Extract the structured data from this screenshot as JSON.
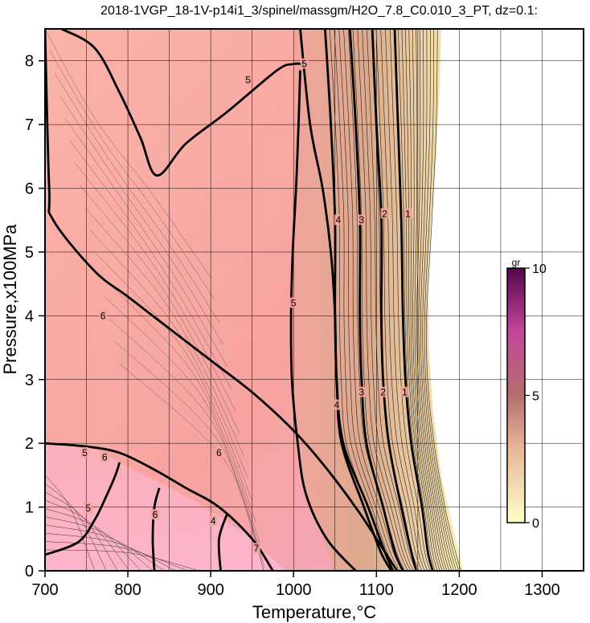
{
  "chart_data": {
    "type": "heatmap",
    "title": "2018-1VGP_18-1V-p14i1_3/spinel/massgm/H2O_7.8_C0.010_3_PT, dz=0.1:",
    "xlabel": "Temperature,°C",
    "ylabel": "Pressure,x100MPa",
    "xlim": [
      700,
      1350
    ],
    "ylim": [
      0,
      8.5
    ],
    "xticks": [
      700,
      800,
      900,
      1000,
      1100,
      1200,
      1300
    ],
    "yticks": [
      0,
      1,
      2,
      3,
      4,
      5,
      6,
      7,
      8
    ],
    "grid": true,
    "colorbar": {
      "unit": "gr",
      "min": 0,
      "max": 10,
      "ticks": [
        0,
        5,
        10
      ],
      "colors": [
        "#ffffc8",
        "#e6b496",
        "#b46e6e",
        "#c3479b",
        "#55064b"
      ]
    },
    "contours": [
      {
        "level": 6,
        "points": [
          [
            700,
            8.5
          ],
          [
            705,
            6.0
          ],
          [
            710,
            5.5
          ],
          [
            760,
            4.7
          ],
          [
            800,
            4.3
          ],
          [
            850,
            3.8
          ],
          [
            900,
            3.3
          ],
          [
            950,
            2.8
          ],
          [
            1000,
            2.2
          ],
          [
            1040,
            1.6
          ],
          [
            1080,
            0.9
          ],
          [
            1110,
            0.3
          ],
          [
            1125,
            0
          ]
        ]
      },
      {
        "level": 6,
        "points": [
          [
            700,
            2.0
          ],
          [
            750,
            1.95
          ],
          [
            790,
            1.85
          ],
          [
            830,
            1.6
          ],
          [
            870,
            1.3
          ],
          [
            910,
            1.0
          ],
          [
            950,
            0.5
          ],
          [
            975,
            0
          ]
        ]
      },
      {
        "level": 6,
        "points": [
          [
            720,
            8.5
          ],
          [
            760,
            8.2
          ],
          [
            790,
            7.5
          ],
          [
            815,
            6.8
          ],
          [
            835,
            6.2
          ],
          [
            870,
            6.7
          ],
          [
            920,
            7.2
          ],
          [
            980,
            7.85
          ],
          [
            1000,
            7.95
          ],
          [
            1012,
            7.95
          ]
        ]
      },
      {
        "level": 6,
        "points": [
          [
            1008,
            7.85
          ],
          [
            1006,
            7.0
          ],
          [
            1003,
            6.0
          ],
          [
            999,
            5.0
          ],
          [
            997,
            4.0
          ],
          [
            998,
            3.0
          ],
          [
            1005,
            2.0
          ],
          [
            1015,
            1.2
          ],
          [
            1040,
            0.5
          ],
          [
            1075,
            0
          ]
        ]
      },
      {
        "level": 5,
        "points": [
          [
            700,
            0.25
          ],
          [
            740,
            0.45
          ],
          [
            760,
            0.8
          ],
          [
            775,
            1.2
          ],
          [
            785,
            1.5
          ],
          [
            790,
            1.7
          ]
        ]
      },
      {
        "level": 5,
        "points": [
          [
            832,
            0
          ],
          [
            830,
            0.5
          ],
          [
            832,
            1.0
          ],
          [
            838,
            1.3
          ]
        ]
      },
      {
        "level": 5,
        "points": [
          [
            912,
            0
          ],
          [
            910,
            0.5
          ],
          [
            920,
            0.9
          ]
        ]
      },
      {
        "level": 4,
        "points": [
          [
            1008,
            8.5
          ],
          [
            1020,
            7.0
          ],
          [
            1035,
            6.0
          ],
          [
            1045,
            5.0
          ],
          [
            1050,
            4.0
          ],
          [
            1052,
            3.0
          ],
          [
            1060,
            2.0
          ],
          [
            1090,
            1.0
          ],
          [
            1110,
            0.3
          ],
          [
            1120,
            0
          ]
        ]
      },
      {
        "level": 4,
        "points": [
          [
            1038,
            8.5
          ],
          [
            1045,
            7.0
          ],
          [
            1050,
            5.5
          ],
          [
            1050,
            4.0
          ],
          [
            1052,
            3.0
          ],
          [
            1058,
            2.0
          ],
          [
            1085,
            1.0
          ],
          [
            1105,
            0.3
          ],
          [
            1118,
            0
          ]
        ]
      },
      {
        "level": 3,
        "points": [
          [
            1068,
            8.5
          ],
          [
            1075,
            7.0
          ],
          [
            1080,
            5.5
          ],
          [
            1080,
            4.0
          ],
          [
            1082,
            3.0
          ],
          [
            1088,
            2.0
          ],
          [
            1108,
            1.0
          ],
          [
            1122,
            0.3
          ],
          [
            1132,
            0
          ]
        ]
      },
      {
        "level": 2,
        "points": [
          [
            1095,
            8.5
          ],
          [
            1100,
            7.0
          ],
          [
            1106,
            5.5
          ],
          [
            1106,
            4.0
          ],
          [
            1108,
            3.0
          ],
          [
            1115,
            2.0
          ],
          [
            1130,
            1.0
          ],
          [
            1142,
            0.3
          ],
          [
            1148,
            0
          ]
        ]
      },
      {
        "level": 1,
        "points": [
          [
            1122,
            8.5
          ],
          [
            1126,
            7.0
          ],
          [
            1130,
            5.5
          ],
          [
            1132,
            4.0
          ],
          [
            1135,
            3.0
          ],
          [
            1142,
            2.0
          ],
          [
            1155,
            1.0
          ],
          [
            1162,
            0.3
          ],
          [
            1168,
            0
          ]
        ]
      }
    ],
    "contour_labels": [
      {
        "text": "5",
        "x": 1013,
        "y": 7.95
      },
      {
        "text": "5",
        "x": 945,
        "y": 7.7
      },
      {
        "text": "6",
        "x": 770,
        "y": 4.0
      },
      {
        "text": "5",
        "x": 1000,
        "y": 4.2
      },
      {
        "text": "4",
        "x": 1054,
        "y": 5.5
      },
      {
        "text": "3",
        "x": 1082,
        "y": 5.5
      },
      {
        "text": "2",
        "x": 1110,
        "y": 5.6
      },
      {
        "text": "1",
        "x": 1138,
        "y": 5.6
      },
      {
        "text": "4",
        "x": 1052,
        "y": 2.6
      },
      {
        "text": "3",
        "x": 1082,
        "y": 2.8
      },
      {
        "text": "2",
        "x": 1108,
        "y": 2.8
      },
      {
        "text": "1",
        "x": 1134,
        "y": 2.8
      },
      {
        "text": "6",
        "x": 910,
        "y": 1.85
      },
      {
        "text": "5",
        "x": 748,
        "y": 1.85
      },
      {
        "text": "6",
        "x": 772,
        "y": 1.78
      },
      {
        "text": "6",
        "x": 833,
        "y": 0.88
      },
      {
        "text": "5",
        "x": 752,
        "y": 0.98
      },
      {
        "text": "4",
        "x": 903,
        "y": 0.78
      },
      {
        "text": "7",
        "x": 955,
        "y": 0.35
      }
    ]
  }
}
